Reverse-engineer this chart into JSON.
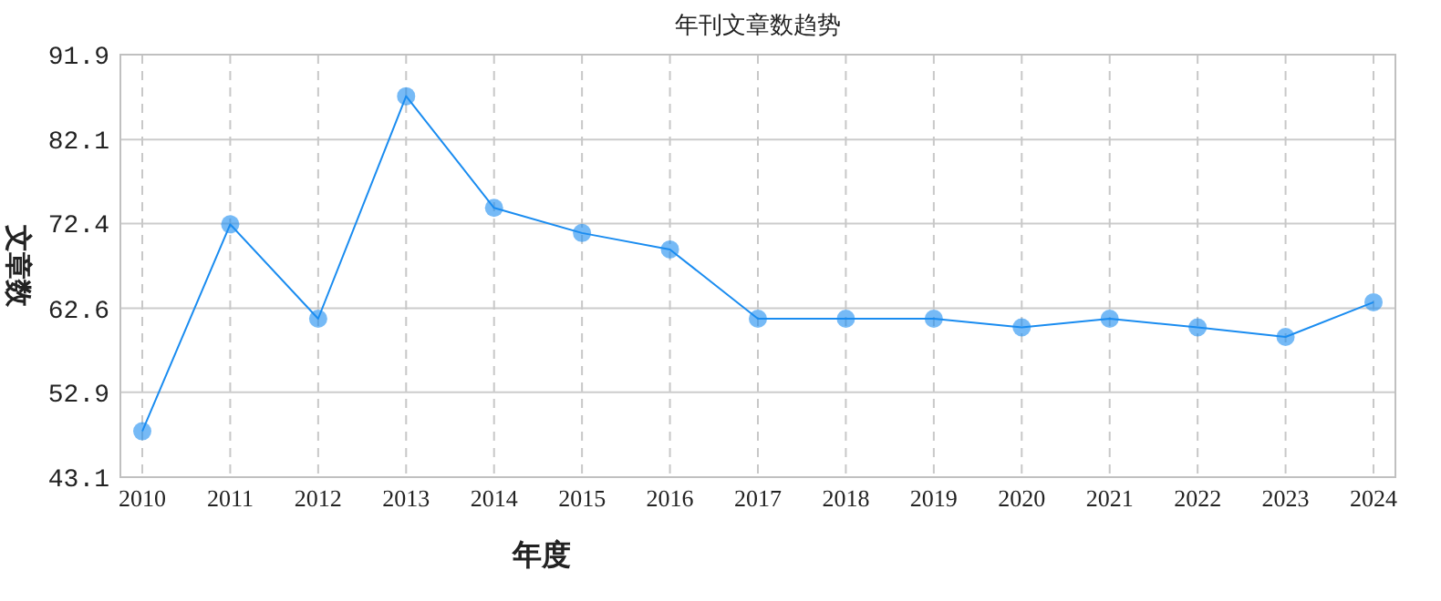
{
  "chart_data": {
    "type": "line",
    "title": "年刊文章数趋势",
    "xlabel": "年度",
    "ylabel": "文章数",
    "categories": [
      "2010",
      "2011",
      "2012",
      "2013",
      "2014",
      "2015",
      "2016",
      "2017",
      "2018",
      "2019",
      "2020",
      "2021",
      "2022",
      "2023",
      "2024"
    ],
    "series": [
      {
        "color": "#1a8cf0",
        "values": [
          48.4,
          72.3,
          61.4,
          87.1,
          74.2,
          71.3,
          69.4,
          61.4,
          61.4,
          61.4,
          60.4,
          61.4,
          60.4,
          59.3,
          63.3
        ]
      }
    ],
    "ylim": [
      43.1,
      91.9
    ],
    "yticks": [
      43.1,
      52.9,
      62.6,
      72.4,
      82.1,
      91.9
    ],
    "grid": true,
    "marker": "circle",
    "line_style": "solid"
  }
}
